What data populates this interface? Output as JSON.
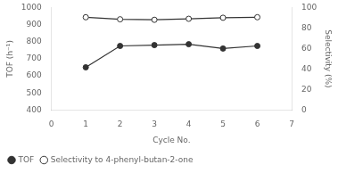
{
  "chart_data": {
    "type": "line",
    "x": [
      1,
      2,
      3,
      4,
      5,
      6
    ],
    "xlabel": "Cycle No.",
    "ylabel": "TOF (h⁻¹)",
    "y2label": "Selectivity (%)",
    "xlim": [
      0,
      7
    ],
    "xticks": [
      0,
      1,
      2,
      3,
      4,
      5,
      6,
      7
    ],
    "ylim": [
      400,
      1000
    ],
    "yticks": [
      400,
      500,
      600,
      700,
      800,
      900,
      1000
    ],
    "y2lim": [
      0,
      100
    ],
    "y2ticks": [
      0,
      20,
      40,
      60,
      80,
      100
    ],
    "grid": false,
    "legend": "lower left",
    "series": [
      {
        "name": "TOF",
        "color": "#333333",
        "marker": "filled_circle",
        "values": [
          650,
          775,
          780,
          785,
          760,
          775
        ]
      },
      {
        "name": "Selectivity to 4-phenyl-butan-2-one",
        "color": "#333333",
        "marker": "open_circle",
        "axis": "y2",
        "values": [
          90.5,
          88.5,
          88.0,
          89.0,
          90.0,
          90.5
        ]
      }
    ]
  }
}
